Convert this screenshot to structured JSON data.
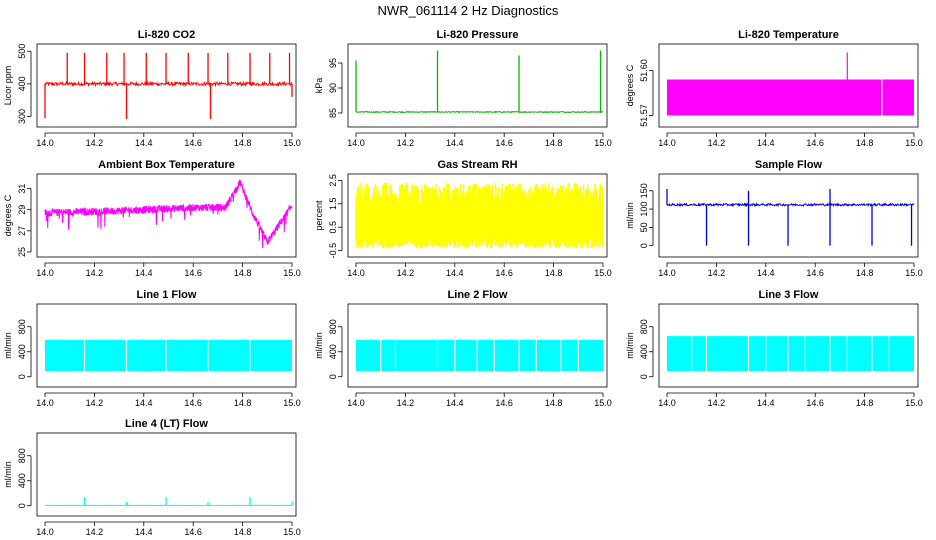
{
  "title": "NWR_061114 2 Hz Diagnostics",
  "chart_data": [
    {
      "id": "co2",
      "type": "line",
      "title": "Li-820 CO2",
      "ylabel": "Licor ppm",
      "color": "#ff0000",
      "xlim": [
        14.0,
        15.0
      ],
      "ylim": [
        280,
        510
      ],
      "xticks": [
        "14.0",
        "14.2",
        "14.4",
        "14.6",
        "14.8",
        "15.0"
      ],
      "yticks": [
        {
          "value": 300,
          "label": "300"
        },
        {
          "value": 400,
          "label": "400"
        },
        {
          "value": 500,
          "label": "500"
        }
      ],
      "pattern": "base",
      "base": 400,
      "noise": 5,
      "spikes": [
        {
          "x": 14.0,
          "y": 295
        },
        {
          "x": 14.09,
          "y": 495
        },
        {
          "x": 14.16,
          "y": 495
        },
        {
          "x": 14.25,
          "y": 495
        },
        {
          "x": 14.32,
          "y": 495
        },
        {
          "x": 14.33,
          "y": 292
        },
        {
          "x": 14.41,
          "y": 495
        },
        {
          "x": 14.49,
          "y": 495
        },
        {
          "x": 14.58,
          "y": 495
        },
        {
          "x": 14.66,
          "y": 495
        },
        {
          "x": 14.67,
          "y": 292
        },
        {
          "x": 14.74,
          "y": 495
        },
        {
          "x": 14.83,
          "y": 495
        },
        {
          "x": 14.91,
          "y": 495
        },
        {
          "x": 14.99,
          "y": 495
        },
        {
          "x": 15.0,
          "y": 360
        }
      ]
    },
    {
      "id": "pressure",
      "type": "line",
      "title": "Li-820 Pressure",
      "ylabel": "kPa",
      "color": "#00bb00",
      "xlim": [
        14.0,
        15.0
      ],
      "ylim": [
        83,
        98
      ],
      "xticks": [
        "14.0",
        "14.2",
        "14.4",
        "14.6",
        "14.8",
        "15.0"
      ],
      "yticks": [
        {
          "value": 85,
          "label": "85"
        },
        {
          "value": 90,
          "label": "90"
        },
        {
          "value": 95,
          "label": "95"
        }
      ],
      "pattern": "base",
      "base": 85.2,
      "noise": 0.1,
      "spikes": [
        {
          "x": 14.0,
          "y": 95.5
        },
        {
          "x": 14.33,
          "y": 97.5
        },
        {
          "x": 14.66,
          "y": 96.5
        },
        {
          "x": 14.99,
          "y": 97.5
        }
      ]
    },
    {
      "id": "licor-temp",
      "type": "area",
      "title": "Li-820 Temperature",
      "ylabel": "degrees C",
      "color": "#ff00ff",
      "xlim": [
        14.0,
        15.0
      ],
      "ylim": [
        51.565,
        51.615
      ],
      "xticks": [
        "14.0",
        "14.2",
        "14.4",
        "14.6",
        "14.8",
        "15.0"
      ],
      "yticks": [
        {
          "value": 51.57,
          "label": "51.57"
        },
        {
          "value": 51.6,
          "label": "51.60"
        }
      ],
      "pattern": "block",
      "low": 51.57,
      "high": 51.594,
      "spikes": [
        {
          "x": 14.73,
          "y": 51.612
        }
      ],
      "gaps": [
        14.87
      ]
    },
    {
      "id": "box-temp",
      "type": "line",
      "title": "Ambient Box Temperature",
      "ylabel": "degrees C",
      "color": "#ff00ff",
      "xlim": [
        14.0,
        15.0
      ],
      "ylim": [
        24.9,
        32.0
      ],
      "xticks": [
        "14.0",
        "14.2",
        "14.4",
        "14.6",
        "14.8",
        "15.0"
      ],
      "yticks": [
        {
          "value": 25,
          "label": "25"
        },
        {
          "value": 27,
          "label": "27"
        },
        {
          "value": 29,
          "label": "29"
        },
        {
          "value": 31,
          "label": "31"
        }
      ],
      "pattern": "wave",
      "noise": 0.7,
      "curve": [
        [
          14.0,
          28.7
        ],
        [
          14.3,
          28.9
        ],
        [
          14.6,
          29.2
        ],
        [
          14.73,
          29.2
        ],
        [
          14.79,
          31.6
        ],
        [
          14.84,
          28.7
        ],
        [
          14.9,
          25.9
        ],
        [
          14.96,
          28.0
        ],
        [
          15.0,
          29.4
        ]
      ]
    },
    {
      "id": "rh",
      "type": "area",
      "title": "Gas Stream RH",
      "ylabel": "percent",
      "color": "#ffff00",
      "xlim": [
        14.0,
        15.0
      ],
      "ylim": [
        -0.6,
        2.6
      ],
      "xticks": [
        "14.0",
        "14.2",
        "14.4",
        "14.6",
        "14.8",
        "15.0"
      ],
      "yticks": [
        {
          "value": -0.5,
          "label": "-0.5"
        },
        {
          "value": 0.5,
          "label": "0.5"
        },
        {
          "value": 1.5,
          "label": "1.5"
        },
        {
          "value": 2.5,
          "label": "2.5"
        }
      ],
      "pattern": "noise",
      "low": -0.4,
      "high": 2.4
    },
    {
      "id": "sample-flow",
      "type": "line",
      "title": "Sample Flow",
      "ylabel": "ml/min",
      "color": "#0000dd",
      "xlim": [
        14.0,
        15.0
      ],
      "ylim": [
        -20,
        185
      ],
      "xticks": [
        "14.0",
        "14.2",
        "14.4",
        "14.6",
        "14.8",
        "15.0"
      ],
      "yticks": [
        {
          "value": 0,
          "label": "0"
        },
        {
          "value": 50,
          "label": "50"
        },
        {
          "value": 100,
          "label": "100"
        },
        {
          "value": 150,
          "label": "150"
        }
      ],
      "pattern": "base",
      "base": 112,
      "noise": 3,
      "spikes": [
        {
          "x": 14.0,
          "y": 155
        },
        {
          "x": 14.16,
          "y": 0
        },
        {
          "x": 14.33,
          "y": 0
        },
        {
          "x": 14.33,
          "y": 150
        },
        {
          "x": 14.49,
          "y": 0
        },
        {
          "x": 14.66,
          "y": 0
        },
        {
          "x": 14.66,
          "y": 155
        },
        {
          "x": 14.83,
          "y": 0
        },
        {
          "x": 14.99,
          "y": 0
        }
      ]
    },
    {
      "id": "line1",
      "type": "area",
      "title": "Line 1 Flow",
      "ylabel": "ml/min",
      "color": "#00ffff",
      "xlim": [
        14.0,
        15.0
      ],
      "ylim": [
        -100,
        1100
      ],
      "xticks": [
        "14.0",
        "14.2",
        "14.4",
        "14.6",
        "14.8",
        "15.0"
      ],
      "yticks": [
        {
          "value": 0,
          "label": "0"
        },
        {
          "value": 400,
          "label": "400"
        },
        {
          "value": 800,
          "label": "800"
        }
      ],
      "pattern": "block",
      "low": 90,
      "high": 590,
      "gaps": [
        14.16,
        14.33,
        14.49,
        14.66,
        14.83
      ]
    },
    {
      "id": "line2",
      "type": "area",
      "title": "Line 2 Flow",
      "ylabel": "ml/min",
      "color": "#00ffff",
      "xlim": [
        14.0,
        15.0
      ],
      "ylim": [
        -100,
        1100
      ],
      "xticks": [
        "14.0",
        "14.2",
        "14.4",
        "14.6",
        "14.8",
        "15.0"
      ],
      "yticks": [
        {
          "value": 0,
          "label": "0"
        },
        {
          "value": 400,
          "label": "400"
        },
        {
          "value": 800,
          "label": "800"
        }
      ],
      "pattern": "block",
      "low": 90,
      "high": 590,
      "gaps": [
        14.1,
        14.16,
        14.33,
        14.4,
        14.49,
        14.56,
        14.66,
        14.73,
        14.83,
        14.9
      ]
    },
    {
      "id": "line3",
      "type": "area",
      "title": "Line 3 Flow",
      "ylabel": "ml/min",
      "color": "#00ffff",
      "xlim": [
        14.0,
        15.0
      ],
      "ylim": [
        -100,
        1100
      ],
      "xticks": [
        "14.0",
        "14.2",
        "14.4",
        "14.6",
        "14.8",
        "15.0"
      ],
      "yticks": [
        {
          "value": 0,
          "label": "0"
        },
        {
          "value": 400,
          "label": "400"
        },
        {
          "value": 800,
          "label": "800"
        }
      ],
      "pattern": "block",
      "low": 90,
      "high": 650,
      "gaps": [
        14.1,
        14.16,
        14.33,
        14.4,
        14.49,
        14.56,
        14.66,
        14.73,
        14.83,
        14.9
      ]
    },
    {
      "id": "line4",
      "type": "line",
      "title": "Line 4 (LT) Flow",
      "ylabel": "ml/min",
      "color": "#00ffff",
      "xlim": [
        14.0,
        15.0
      ],
      "ylim": [
        -100,
        1100
      ],
      "xticks": [
        "14.0",
        "14.2",
        "14.4",
        "14.6",
        "14.8",
        "15.0"
      ],
      "yticks": [
        {
          "value": 0,
          "label": "0"
        },
        {
          "value": 400,
          "label": "400"
        },
        {
          "value": 800,
          "label": "800"
        }
      ],
      "pattern": "base",
      "base": 5,
      "noise": 2,
      "spikes": [
        {
          "x": 14.16,
          "y": 140
        },
        {
          "x": 14.33,
          "y": 60
        },
        {
          "x": 14.49,
          "y": 140
        },
        {
          "x": 14.66,
          "y": 60
        },
        {
          "x": 14.83,
          "y": 140
        },
        {
          "x": 15.0,
          "y": 70
        }
      ]
    }
  ]
}
